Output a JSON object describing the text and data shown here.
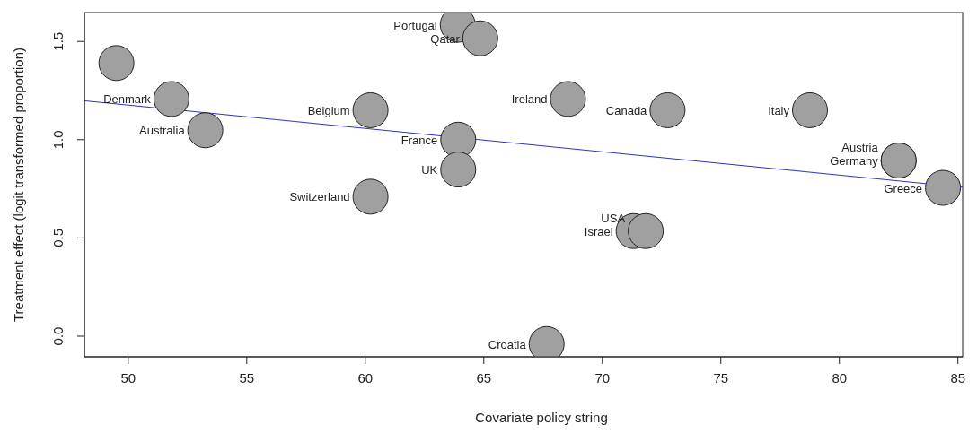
{
  "chart_data": {
    "type": "scatter",
    "xlabel": "Covariate policy  string",
    "ylabel": "Treatment effect (logit transformed proportion)",
    "xlim": [
      48.15,
      85.2
    ],
    "ylim": [
      -0.105,
      1.647
    ],
    "xticks": [
      50,
      55,
      60,
      65,
      70,
      75,
      80,
      85
    ],
    "yticks": [
      {
        "value": 0,
        "label": "0.0"
      },
      0.5,
      {
        "value": 1,
        "label": "1.0"
      },
      1.5
    ],
    "grid": false,
    "series": [
      {
        "color": "#a0a0a0",
        "marker": "circle",
        "x": [
          49.5,
          51.82,
          53.25,
          60.22,
          60.22,
          63.92,
          63.92,
          63.9,
          64.85,
          68.55,
          72.75,
          78.76,
          82.5,
          82.5,
          84.37,
          71.32,
          71.83,
          67.65
        ],
        "values": [
          1.39,
          1.207,
          1.048,
          1.15,
          0.71,
          1.0,
          0.848,
          1.585,
          1.516,
          1.207,
          1.15,
          1.15,
          0.894,
          0.894,
          0.755,
          0.535,
          0.535,
          -0.04
        ],
        "value_labels": [
          null,
          "Denmark",
          "Australia",
          "Belgium",
          "Switzerland",
          "France",
          "UK",
          "Portugal",
          "Qatar",
          "Ireland",
          "Canada",
          "Italy",
          "Germany",
          "Austria",
          "Greece",
          "Israel",
          "USA",
          "Croatia"
        ]
      },
      {
        "type": "line",
        "color": "#3030c8",
        "x": [
          48.15,
          85.2
        ],
        "values": [
          1.198,
          0.758
        ]
      }
    ]
  }
}
